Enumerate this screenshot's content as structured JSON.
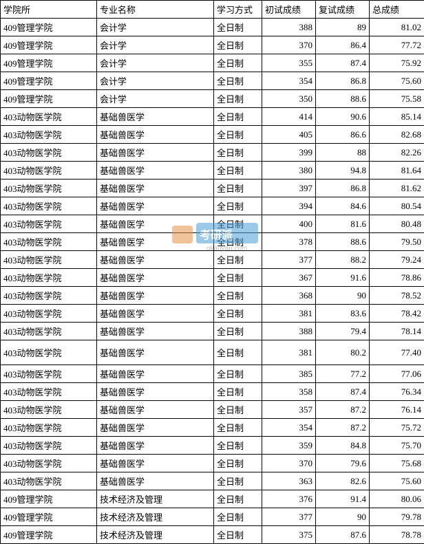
{
  "table": {
    "columns": [
      "学院所",
      "专业名称",
      "学习方式",
      "初试成绩",
      "复试成绩",
      "总成绩"
    ],
    "column_classes": [
      "col-dept",
      "col-major",
      "col-mode",
      "col-score1",
      "col-score2",
      "col-total"
    ],
    "rows": [
      {
        "dept": "409管理学院",
        "major": "会计学",
        "mode": "全日制",
        "s1": "388",
        "s2": "89",
        "total": "81.02",
        "tall": false
      },
      {
        "dept": "409管理学院",
        "major": "会计学",
        "mode": "全日制",
        "s1": "370",
        "s2": "86.4",
        "total": "77.72",
        "tall": false
      },
      {
        "dept": "409管理学院",
        "major": "会计学",
        "mode": "全日制",
        "s1": "355",
        "s2": "87.4",
        "total": "75.92",
        "tall": false
      },
      {
        "dept": "409管理学院",
        "major": "会计学",
        "mode": "全日制",
        "s1": "354",
        "s2": "86.8",
        "total": "75.60",
        "tall": false
      },
      {
        "dept": "409管理学院",
        "major": "会计学",
        "mode": "全日制",
        "s1": "350",
        "s2": "88.6",
        "total": "75.58",
        "tall": false
      },
      {
        "dept": "403动物医学院",
        "major": "基础兽医学",
        "mode": "全日制",
        "s1": "414",
        "s2": "90.6",
        "total": "85.14",
        "tall": false
      },
      {
        "dept": "403动物医学院",
        "major": "基础兽医学",
        "mode": "全日制",
        "s1": "405",
        "s2": "86.6",
        "total": "82.68",
        "tall": false
      },
      {
        "dept": "403动物医学院",
        "major": "基础兽医学",
        "mode": "全日制",
        "s1": "399",
        "s2": "88",
        "total": "82.26",
        "tall": false
      },
      {
        "dept": "403动物医学院",
        "major": "基础兽医学",
        "mode": "全日制",
        "s1": "380",
        "s2": "94.8",
        "total": "81.64",
        "tall": false
      },
      {
        "dept": "403动物医学院",
        "major": "基础兽医学",
        "mode": "全日制",
        "s1": "397",
        "s2": "86.8",
        "total": "81.62",
        "tall": false
      },
      {
        "dept": "403动物医学院",
        "major": "基础兽医学",
        "mode": "全日制",
        "s1": "394",
        "s2": "84.6",
        "total": "80.54",
        "tall": false
      },
      {
        "dept": "403动物医学院",
        "major": "基础兽医学",
        "mode": "全日制",
        "s1": "400",
        "s2": "81.6",
        "total": "80.48",
        "tall": false
      },
      {
        "dept": "403动物医学院",
        "major": "基础兽医学",
        "mode": "全日制",
        "s1": "378",
        "s2": "88.6",
        "total": "79.50",
        "tall": false
      },
      {
        "dept": "403动物医学院",
        "major": "基础兽医学",
        "mode": "全日制",
        "s1": "377",
        "s2": "88.2",
        "total": "79.24",
        "tall": false
      },
      {
        "dept": "403动物医学院",
        "major": "基础兽医学",
        "mode": "全日制",
        "s1": "367",
        "s2": "91.6",
        "total": "78.86",
        "tall": false
      },
      {
        "dept": "403动物医学院",
        "major": "基础兽医学",
        "mode": "全日制",
        "s1": "368",
        "s2": "90",
        "total": "78.52",
        "tall": false
      },
      {
        "dept": "403动物医学院",
        "major": "基础兽医学",
        "mode": "全日制",
        "s1": "381",
        "s2": "83.6",
        "total": "78.42",
        "tall": false
      },
      {
        "dept": "403动物医学院",
        "major": "基础兽医学",
        "mode": "全日制",
        "s1": "388",
        "s2": "79.4",
        "total": "78.14",
        "tall": false
      },
      {
        "dept": "403动物医学院",
        "major": "基础兽医学",
        "mode": "全日制",
        "s1": "381",
        "s2": "80.2",
        "total": "77.40",
        "tall": true
      },
      {
        "dept": "403动物医学院",
        "major": "基础兽医学",
        "mode": "全日制",
        "s1": "385",
        "s2": "77.2",
        "total": "77.06",
        "tall": false
      },
      {
        "dept": "403动物医学院",
        "major": "基础兽医学",
        "mode": "全日制",
        "s1": "358",
        "s2": "87.4",
        "total": "76.34",
        "tall": false
      },
      {
        "dept": "403动物医学院",
        "major": "基础兽医学",
        "mode": "全日制",
        "s1": "357",
        "s2": "87.2",
        "total": "76.14",
        "tall": false
      },
      {
        "dept": "403动物医学院",
        "major": "基础兽医学",
        "mode": "全日制",
        "s1": "354",
        "s2": "87.2",
        "total": "75.72",
        "tall": false
      },
      {
        "dept": "403动物医学院",
        "major": "基础兽医学",
        "mode": "全日制",
        "s1": "359",
        "s2": "84.8",
        "total": "75.70",
        "tall": false
      },
      {
        "dept": "403动物医学院",
        "major": "基础兽医学",
        "mode": "全日制",
        "s1": "370",
        "s2": "79.6",
        "total": "75.68",
        "tall": false
      },
      {
        "dept": "403动物医学院",
        "major": "基础兽医学",
        "mode": "全日制",
        "s1": "363",
        "s2": "82.6",
        "total": "75.60",
        "tall": false
      },
      {
        "dept": "409管理学院",
        "major": "技术经济及管理",
        "mode": "全日制",
        "s1": "376",
        "s2": "91.4",
        "total": "80.06",
        "tall": false
      },
      {
        "dept": "409管理学院",
        "major": "技术经济及管理",
        "mode": "全日制",
        "s1": "377",
        "s2": "90",
        "total": "79.78",
        "tall": false
      },
      {
        "dept": "409管理学院",
        "major": "技术经济及管理",
        "mode": "全日制",
        "s1": "375",
        "s2": "87.6",
        "total": "78.78",
        "tall": false
      }
    ]
  },
  "watermark": {
    "brand_text": "考研派",
    "url": "okaoyan.com"
  },
  "style": {
    "border_color": "#000000",
    "background_color": "#ffffff",
    "font_size_pt": 10,
    "font_family": "SimSun",
    "watermark_blue": "#4a9fd8",
    "watermark_orange": "#e8914a",
    "watermark_url_color": "#888888"
  }
}
